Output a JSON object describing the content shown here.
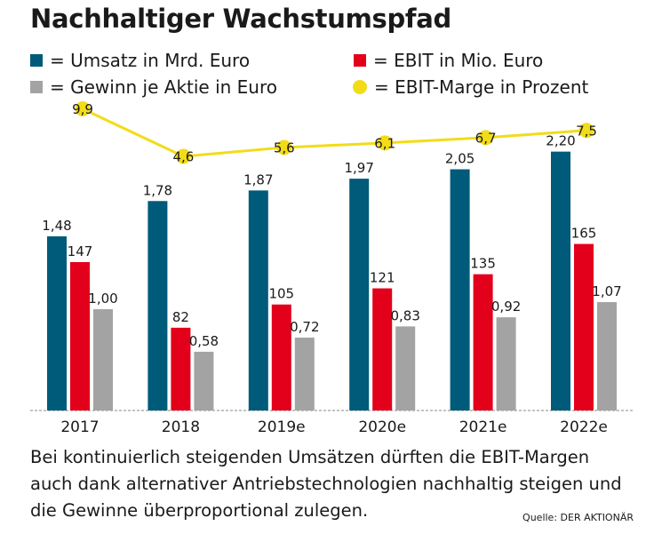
{
  "title": "Nachhaltiger Wachstumspfad",
  "legend": [
    {
      "label": "= Umsatz in Mrd. Euro",
      "color": "#005a7a",
      "shape": "square"
    },
    {
      "label": "= EBIT in Mio. Euro",
      "color": "#e2001a",
      "shape": "square"
    },
    {
      "label": "= Gewinn je Aktie in Euro",
      "color": "#a3a3a3",
      "shape": "square"
    },
    {
      "label": "= EBIT-Marge in Prozent",
      "color": "#f2dc19",
      "shape": "circle"
    }
  ],
  "chart_data": {
    "type": "bar",
    "categories": [
      "2017",
      "2018",
      "2019e",
      "2020e",
      "2021e",
      "2022e"
    ],
    "series": [
      {
        "name": "Umsatz in Mrd. Euro",
        "values": [
          1.48,
          1.78,
          1.87,
          1.97,
          2.05,
          2.2
        ],
        "labels": [
          "1,48",
          "1,78",
          "1,87",
          "1,97",
          "2,05",
          "2,20"
        ],
        "color": "#005a7a"
      },
      {
        "name": "EBIT in Mio. Euro",
        "values": [
          147,
          82,
          105,
          121,
          135,
          165
        ],
        "labels": [
          "147",
          "82",
          "105",
          "121",
          "135",
          "165"
        ],
        "color": "#e2001a"
      },
      {
        "name": "Gewinn je Aktie in Euro",
        "values": [
          1.0,
          0.58,
          0.72,
          0.83,
          0.92,
          1.07
        ],
        "labels": [
          "1,00",
          "0,58",
          "0,72",
          "0,83",
          "0,92",
          "1,07"
        ],
        "color": "#a3a3a3"
      }
    ],
    "line_series": {
      "name": "EBIT-Marge in Prozent",
      "type": "line",
      "values": [
        9.9,
        4.6,
        5.6,
        6.1,
        6.7,
        7.5
      ],
      "labels": [
        "9,9",
        "4,6",
        "5,6",
        "6,1",
        "6,7",
        "7,5"
      ],
      "color": "#f2dc19"
    },
    "grid": false,
    "legend_position": "top"
  },
  "caption": "Bei kontinuierlich steigenden Umsätzen dürften die EBIT-Margen auch dank alternativer Antriebstechnologien nachhaltig steigen und die Gewinne überproportional zulegen.",
  "source": "Quelle: DER AKTIONÄR"
}
